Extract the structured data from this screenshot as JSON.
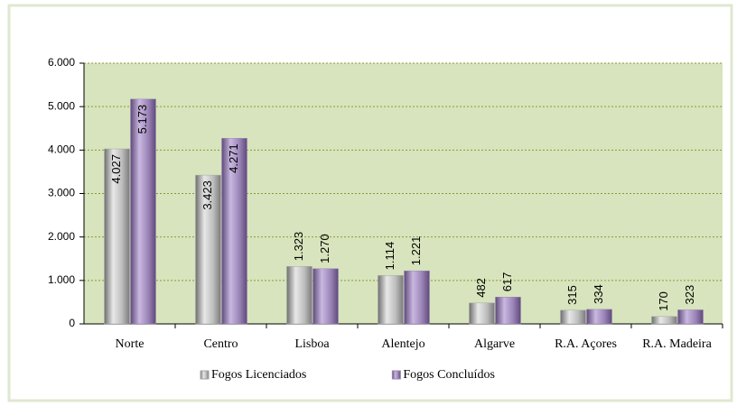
{
  "chart_data": {
    "type": "bar",
    "categories": [
      "Norte",
      "Centro",
      "Lisboa",
      "Alentejo",
      "Algarve",
      "R.A. Açores",
      "R.A. Madeira"
    ],
    "series": [
      {
        "name": "Fogos Licenciados",
        "color": "#a6a6a6",
        "values": [
          4027,
          3423,
          1323,
          1114,
          482,
          315,
          170
        ],
        "value_labels": [
          "4.027",
          "3.423",
          "1.323",
          "1.114",
          "482",
          "315",
          "170"
        ]
      },
      {
        "name": "Fogos Concluídos",
        "color": "#9b85b8",
        "values": [
          5173,
          4271,
          1270,
          1221,
          617,
          334,
          323
        ],
        "value_labels": [
          "5.173",
          "4.271",
          "1.270",
          "1.221",
          "617",
          "334",
          "323"
        ]
      }
    ],
    "ylim": [
      0,
      6000
    ],
    "yticks": [
      0,
      {
        "value": 1000,
        "label": "1.000"
      },
      {
        "value": 2000,
        "label": "2.000"
      },
      {
        "value": 3000,
        "label": "3.000"
      },
      {
        "value": 4000,
        "label": "4.000"
      },
      {
        "value": 5000,
        "label": "5.000"
      },
      {
        "value": 6000,
        "label": "6.000"
      }
    ],
    "grid": true,
    "legend": "bottom"
  }
}
